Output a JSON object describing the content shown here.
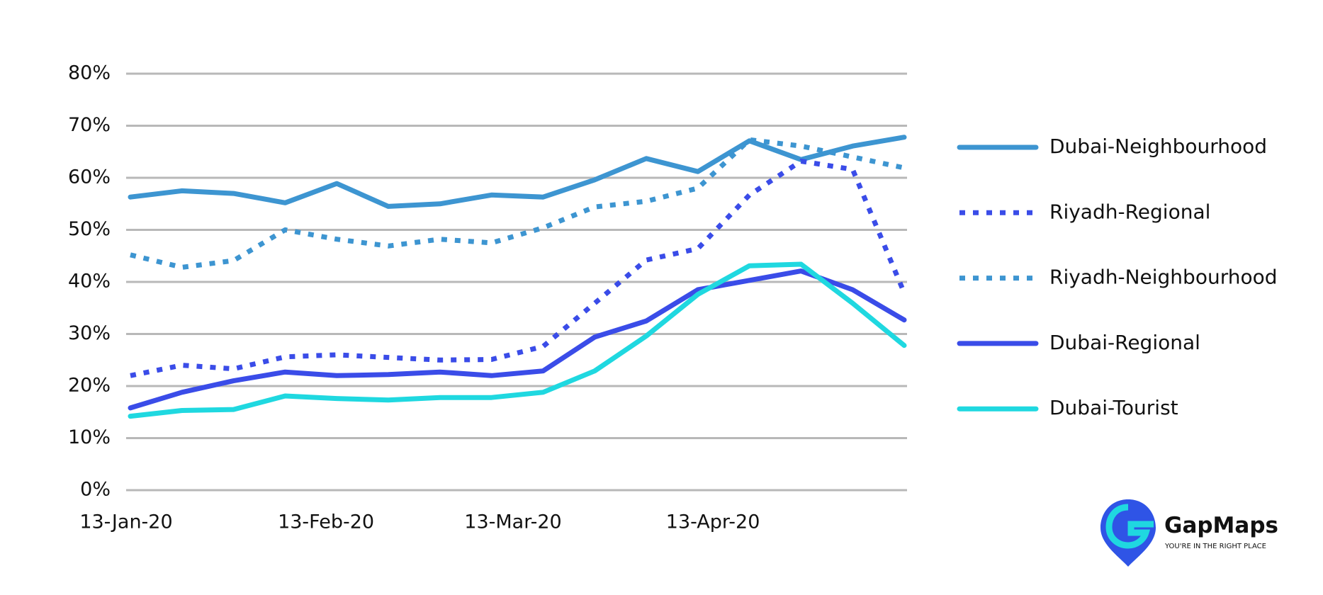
{
  "chart_data": {
    "type": "line",
    "x": [
      "2020-01-13",
      "2020-01-21",
      "2020-01-29",
      "2020-02-06",
      "2020-02-14",
      "2020-02-22",
      "2020-03-01",
      "2020-03-09",
      "2020-03-17",
      "2020-03-25",
      "2020-04-02",
      "2020-04-10",
      "2020-04-18",
      "2020-04-26",
      "2020-05-04",
      "2020-05-12"
    ],
    "xticks": [
      {
        "value": "2020-01-13",
        "label": "13-Jan-20"
      },
      {
        "value": "2020-02-13",
        "label": "13-Feb-20"
      },
      {
        "value": "2020-03-13",
        "label": "13-Mar-20"
      },
      {
        "value": "2020-04-13",
        "label": "13-Apr-20"
      }
    ],
    "ylim": [
      0,
      80
    ],
    "yticks": [
      {
        "value": 0,
        "label": "0%"
      },
      {
        "value": 10,
        "label": "10%"
      },
      {
        "value": 20,
        "label": "20%"
      },
      {
        "value": 30,
        "label": "30%"
      },
      {
        "value": 40,
        "label": "40%"
      },
      {
        "value": 50,
        "label": "50%"
      },
      {
        "value": 60,
        "label": "60%"
      },
      {
        "value": 70,
        "label": "70%"
      },
      {
        "value": 80,
        "label": "80%"
      }
    ],
    "grid": true,
    "legend": "right",
    "series": [
      {
        "name": "Dubai-Neighbourhood",
        "color": "#3d95d1",
        "style": "solid",
        "values": [
          56.3,
          57.5,
          57,
          55.2,
          58.9,
          54.5,
          55,
          56.7,
          56.3,
          59.6,
          63.7,
          61.2,
          67.1,
          63.5,
          66.1,
          67.8
        ]
      },
      {
        "name": "Riyadh-Regional",
        "color": "#3a4ce8",
        "style": "dotted",
        "values": [
          22,
          24,
          23.3,
          25.6,
          26,
          25.5,
          25,
          25.1,
          27.6,
          35.9,
          44.2,
          46.4,
          56.7,
          63.2,
          61.6,
          37.9
        ]
      },
      {
        "name": "Riyadh-Neighbourhood",
        "color": "#3d95d1",
        "style": "dotted",
        "values": [
          45.2,
          42.8,
          44.1,
          50,
          48.2,
          46.9,
          48.2,
          47.5,
          50.4,
          54.4,
          55.5,
          58,
          67.3,
          66.1,
          64,
          61.9
        ]
      },
      {
        "name": "Dubai-Regional",
        "color": "#3a4ce8",
        "style": "solid",
        "values": [
          15.8,
          18.8,
          21,
          22.7,
          22,
          22.2,
          22.7,
          22,
          22.9,
          29.4,
          32.5,
          38.5,
          40.3,
          42.1,
          38.5,
          32.7
        ]
      },
      {
        "name": "Dubai-Tourist",
        "color": "#1fd8e0",
        "style": "solid",
        "values": [
          14.2,
          15.3,
          15.5,
          18.1,
          17.6,
          17.3,
          17.8,
          17.8,
          18.8,
          22.9,
          29.6,
          37.6,
          43.1,
          43.4,
          35.9,
          27.8
        ]
      }
    ]
  },
  "logo": {
    "name": "GapMaps",
    "tagline": "YOU'RE IN THE RIGHT PLACE"
  }
}
